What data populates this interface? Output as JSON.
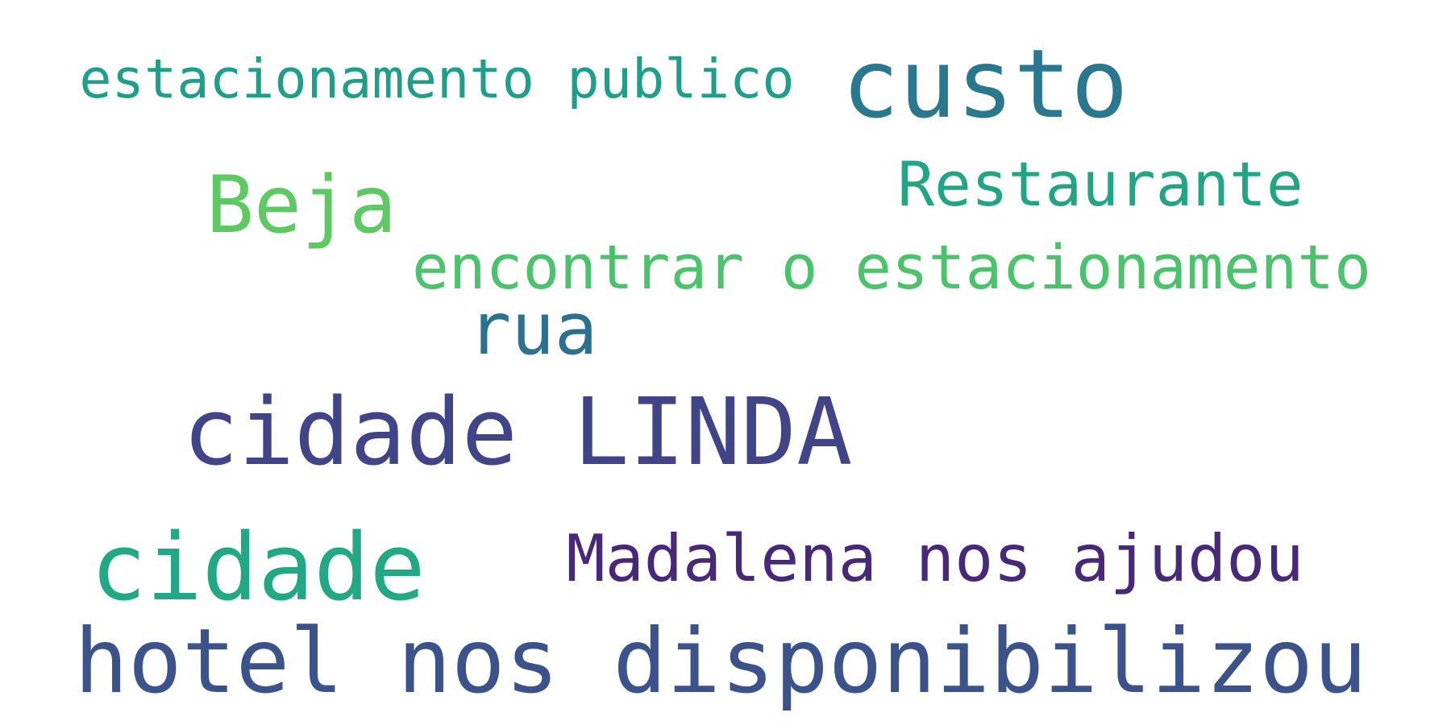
{
  "words": [
    {
      "text": "estacionamento publico",
      "color": "#1f9e89"
    },
    {
      "text": "custo",
      "color": "#2a788e"
    },
    {
      "text": "Beja",
      "color": "#5ec962"
    },
    {
      "text": "Restaurante",
      "color": "#21a585"
    },
    {
      "text": "encontrar o estacionamento",
      "color": "#4cc26c"
    },
    {
      "text": "rua",
      "color": "#2c728e"
    },
    {
      "text": "cidade LINDA",
      "color": "#414487"
    },
    {
      "text": "cidade",
      "color": "#22a884"
    },
    {
      "text": "Madalena nos ajudou",
      "color": "#482878"
    },
    {
      "text": "hotel nos disponibilizou",
      "color": "#3b528b"
    }
  ]
}
